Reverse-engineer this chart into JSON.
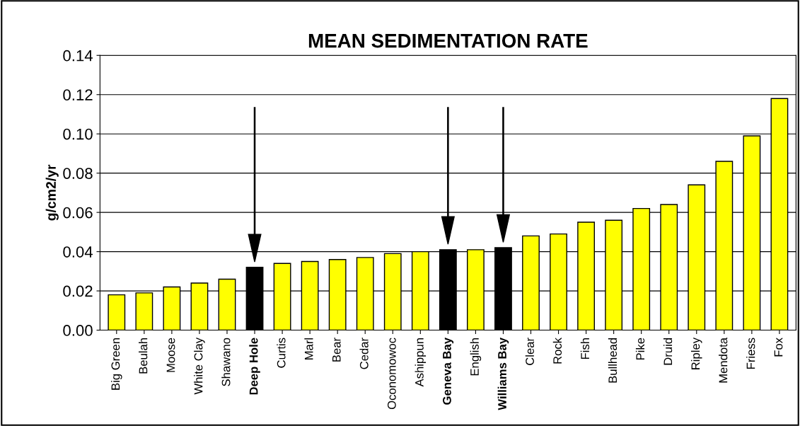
{
  "chart_data": {
    "type": "bar",
    "title": "MEAN SEDIMENTATION RATE",
    "ylabel": "g/cm2/yr",
    "categories": [
      "Big Green",
      "Beulah",
      "Moose",
      "White Clay",
      "Shawano",
      "Deep Hole",
      "Curtis",
      "Marl",
      "Bear",
      "Cedar",
      "Oconomowoc",
      "Ashippun",
      "Geneva Bay",
      "English",
      "Williams Bay",
      "Clear",
      "Rock",
      "Fish",
      "Bullhead",
      "Pike",
      "Druid",
      "Ripley",
      "Mendota",
      "Friess",
      "Fox"
    ],
    "values": [
      0.018,
      0.019,
      0.022,
      0.024,
      0.026,
      0.032,
      0.034,
      0.035,
      0.036,
      0.037,
      0.039,
      0.04,
      0.041,
      0.041,
      0.042,
      0.048,
      0.049,
      0.055,
      0.056,
      0.062,
      0.064,
      0.074,
      0.086,
      0.099,
      0.118
    ],
    "colors": [
      "#ffff00",
      "#ffff00",
      "#ffff00",
      "#ffff00",
      "#ffff00",
      "#000000",
      "#ffff00",
      "#ffff00",
      "#ffff00",
      "#ffff00",
      "#ffff00",
      "#ffff00",
      "#000000",
      "#ffff00",
      "#000000",
      "#ffff00",
      "#ffff00",
      "#ffff00",
      "#ffff00",
      "#ffff00",
      "#ffff00",
      "#ffff00",
      "#ffff00",
      "#ffff00",
      "#ffff00"
    ],
    "ylim": [
      0,
      0.14
    ],
    "yticks": [
      {
        "value": 0,
        "label": "0.00"
      },
      {
        "value": 0.02,
        "label": "0.02"
      },
      {
        "value": 0.04,
        "label": "0.04"
      },
      {
        "value": 0.06,
        "label": "0.06"
      },
      {
        "value": 0.08,
        "label": "0.08"
      },
      {
        "value": 0.1,
        "label": "0.10"
      },
      {
        "value": 0.12,
        "label": "0.12"
      },
      {
        "value": 0.14,
        "label": "0.14"
      }
    ],
    "grid": "y",
    "legend": false
  }
}
